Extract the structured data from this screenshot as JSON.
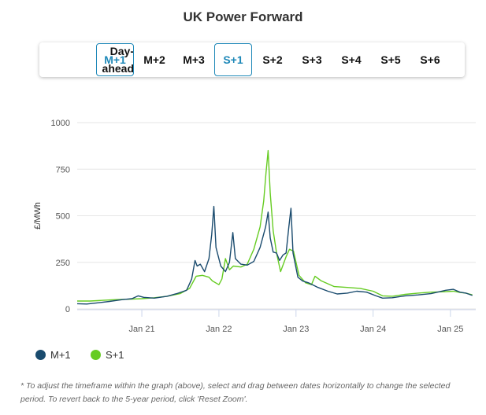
{
  "title": "UK Power Forward",
  "tabs": [
    {
      "line1": "Day-",
      "line2": "ahead",
      "active": false
    },
    {
      "label": "M+1",
      "active": true
    },
    {
      "label": "M+2",
      "active": false
    },
    {
      "label": "M+3",
      "active": false
    },
    {
      "label": "S+1",
      "active": true
    },
    {
      "label": "S+2",
      "active": false
    },
    {
      "label": "S+3",
      "active": false
    },
    {
      "label": "S+4",
      "active": false
    },
    {
      "label": "S+5",
      "active": false
    },
    {
      "label": "S+6",
      "active": false
    }
  ],
  "colors": {
    "m1": "#1a4b6e",
    "s1": "#66cc22",
    "accent": "#1e88b8",
    "grid": "#e6e6e6"
  },
  "footnote": "* To adjust the timeframe within the graph (above), select and drag between dates horizontally to change the selected period. To revert back to the 5-year period, click 'Reset Zoom'.",
  "chart_data": {
    "type": "line",
    "title": "UK Power Forward",
    "ylabel": "£/MWh",
    "ylim": [
      0,
      1000
    ],
    "yticks": [
      0,
      250,
      500,
      750,
      1000
    ],
    "xlim": [
      "2020-03-01",
      "2025-05-01"
    ],
    "xticks": [
      {
        "date": "2021-01-01",
        "label": "Jan 21"
      },
      {
        "date": "2022-01-01",
        "label": "Jan 22"
      },
      {
        "date": "2023-01-01",
        "label": "Jan 23"
      },
      {
        "date": "2024-01-01",
        "label": "Jan 24"
      },
      {
        "date": "2025-01-01",
        "label": "Jan 25"
      }
    ],
    "grid": "horizontal",
    "legend_position": "bottom-left",
    "series": [
      {
        "name": "M+1",
        "color": "#1a4b6e",
        "points": [
          [
            "2020-03-01",
            28
          ],
          [
            "2020-04-15",
            26
          ],
          [
            "2020-06-01",
            32
          ],
          [
            "2020-08-01",
            40
          ],
          [
            "2020-10-01",
            50
          ],
          [
            "2020-11-15",
            55
          ],
          [
            "2020-12-15",
            70
          ],
          [
            "2021-01-10",
            62
          ],
          [
            "2021-03-01",
            58
          ],
          [
            "2021-05-01",
            68
          ],
          [
            "2021-06-15",
            82
          ],
          [
            "2021-08-01",
            100
          ],
          [
            "2021-08-25",
            160
          ],
          [
            "2021-09-10",
            260
          ],
          [
            "2021-09-20",
            230
          ],
          [
            "2021-10-05",
            240
          ],
          [
            "2021-10-25",
            200
          ],
          [
            "2021-11-15",
            270
          ],
          [
            "2021-11-28",
            400
          ],
          [
            "2021-12-08",
            550
          ],
          [
            "2021-12-18",
            330
          ],
          [
            "2022-01-10",
            230
          ],
          [
            "2022-02-01",
            200
          ],
          [
            "2022-02-20",
            250
          ],
          [
            "2022-03-08",
            410
          ],
          [
            "2022-03-20",
            270
          ],
          [
            "2022-04-15",
            240
          ],
          [
            "2022-05-15",
            235
          ],
          [
            "2022-06-15",
            255
          ],
          [
            "2022-07-15",
            330
          ],
          [
            "2022-08-10",
            440
          ],
          [
            "2022-08-22",
            520
          ],
          [
            "2022-09-01",
            380
          ],
          [
            "2022-09-15",
            305
          ],
          [
            "2022-10-01",
            300
          ],
          [
            "2022-10-15",
            260
          ],
          [
            "2022-11-01",
            290
          ],
          [
            "2022-11-15",
            300
          ],
          [
            "2022-11-28",
            440
          ],
          [
            "2022-12-08",
            540
          ],
          [
            "2022-12-18",
            300
          ],
          [
            "2023-01-10",
            170
          ],
          [
            "2023-02-01",
            150
          ],
          [
            "2023-03-01",
            140
          ],
          [
            "2023-04-15",
            115
          ],
          [
            "2023-06-01",
            95
          ],
          [
            "2023-07-15",
            80
          ],
          [
            "2023-09-01",
            85
          ],
          [
            "2023-10-15",
            95
          ],
          [
            "2023-12-01",
            90
          ],
          [
            "2024-01-15",
            70
          ],
          [
            "2024-02-15",
            58
          ],
          [
            "2024-04-01",
            60
          ],
          [
            "2024-06-01",
            70
          ],
          [
            "2024-08-01",
            75
          ],
          [
            "2024-10-01",
            82
          ],
          [
            "2024-12-10",
            100
          ],
          [
            "2025-01-15",
            105
          ],
          [
            "2025-02-15",
            90
          ],
          [
            "2025-03-15",
            85
          ],
          [
            "2025-04-15",
            72
          ]
        ]
      },
      {
        "name": "S+1",
        "color": "#66cc22",
        "points": [
          [
            "2020-03-01",
            42
          ],
          [
            "2020-05-01",
            42
          ],
          [
            "2020-07-01",
            46
          ],
          [
            "2020-09-01",
            50
          ],
          [
            "2020-11-01",
            52
          ],
          [
            "2021-01-01",
            55
          ],
          [
            "2021-03-01",
            60
          ],
          [
            "2021-05-01",
            68
          ],
          [
            "2021-07-01",
            82
          ],
          [
            "2021-08-15",
            110
          ],
          [
            "2021-09-15",
            175
          ],
          [
            "2021-10-15",
            180
          ],
          [
            "2021-11-15",
            170
          ],
          [
            "2021-12-01",
            150
          ],
          [
            "2022-01-01",
            130
          ],
          [
            "2022-01-15",
            160
          ],
          [
            "2022-02-01",
            270
          ],
          [
            "2022-02-20",
            210
          ],
          [
            "2022-03-10",
            230
          ],
          [
            "2022-04-15",
            225
          ],
          [
            "2022-05-15",
            240
          ],
          [
            "2022-06-15",
            320
          ],
          [
            "2022-07-15",
            440
          ],
          [
            "2022-08-01",
            580
          ],
          [
            "2022-08-12",
            730
          ],
          [
            "2022-08-22",
            850
          ],
          [
            "2022-09-01",
            620
          ],
          [
            "2022-09-15",
            420
          ],
          [
            "2022-10-01",
            300
          ],
          [
            "2022-10-20",
            200
          ],
          [
            "2022-11-15",
            280
          ],
          [
            "2022-12-01",
            320
          ],
          [
            "2022-12-20",
            310
          ],
          [
            "2023-01-15",
            180
          ],
          [
            "2023-02-15",
            140
          ],
          [
            "2023-03-15",
            130
          ],
          [
            "2023-04-01",
            175
          ],
          [
            "2023-05-01",
            150
          ],
          [
            "2023-07-01",
            120
          ],
          [
            "2023-09-01",
            115
          ],
          [
            "2023-11-01",
            110
          ],
          [
            "2024-01-01",
            95
          ],
          [
            "2024-02-15",
            70
          ],
          [
            "2024-04-01",
            68
          ],
          [
            "2024-06-01",
            78
          ],
          [
            "2024-08-01",
            85
          ],
          [
            "2024-10-01",
            90
          ],
          [
            "2024-12-01",
            92
          ],
          [
            "2025-01-15",
            95
          ],
          [
            "2025-02-15",
            88
          ],
          [
            "2025-03-15",
            85
          ],
          [
            "2025-04-15",
            75
          ]
        ]
      }
    ]
  }
}
